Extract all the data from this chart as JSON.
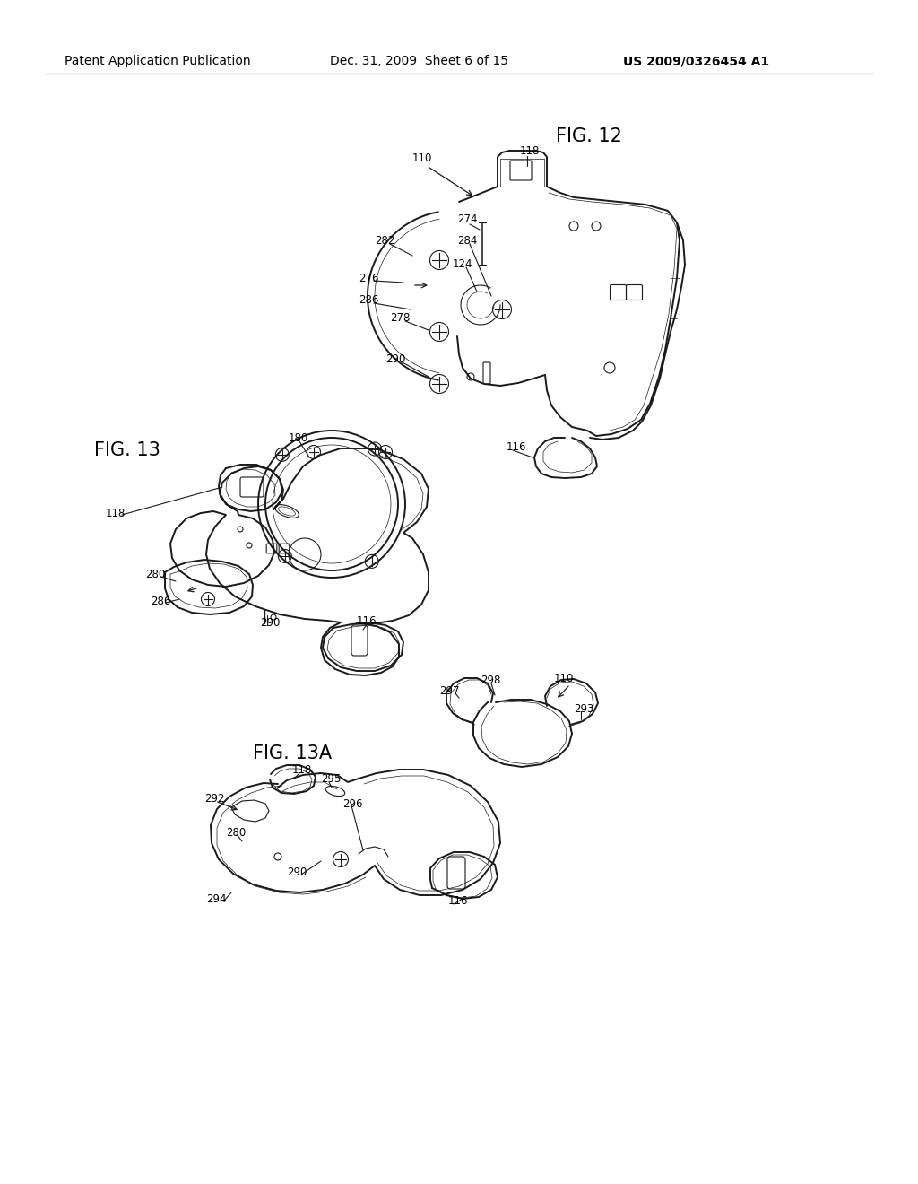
{
  "header_left": "Patent Application Publication",
  "header_middle": "Dec. 31, 2009  Sheet 6 of 15",
  "header_right": "US 2009/0326454 A1",
  "fig12_title": "FIG. 12",
  "fig13_title": "FIG. 13",
  "fig13a_title": "FIG. 13A",
  "background_color": "#ffffff",
  "line_color": "#1a1a1a",
  "text_color": "#000000",
  "header_fontsize": 10,
  "fig_title_fontsize": 15,
  "label_fontsize": 8.5
}
